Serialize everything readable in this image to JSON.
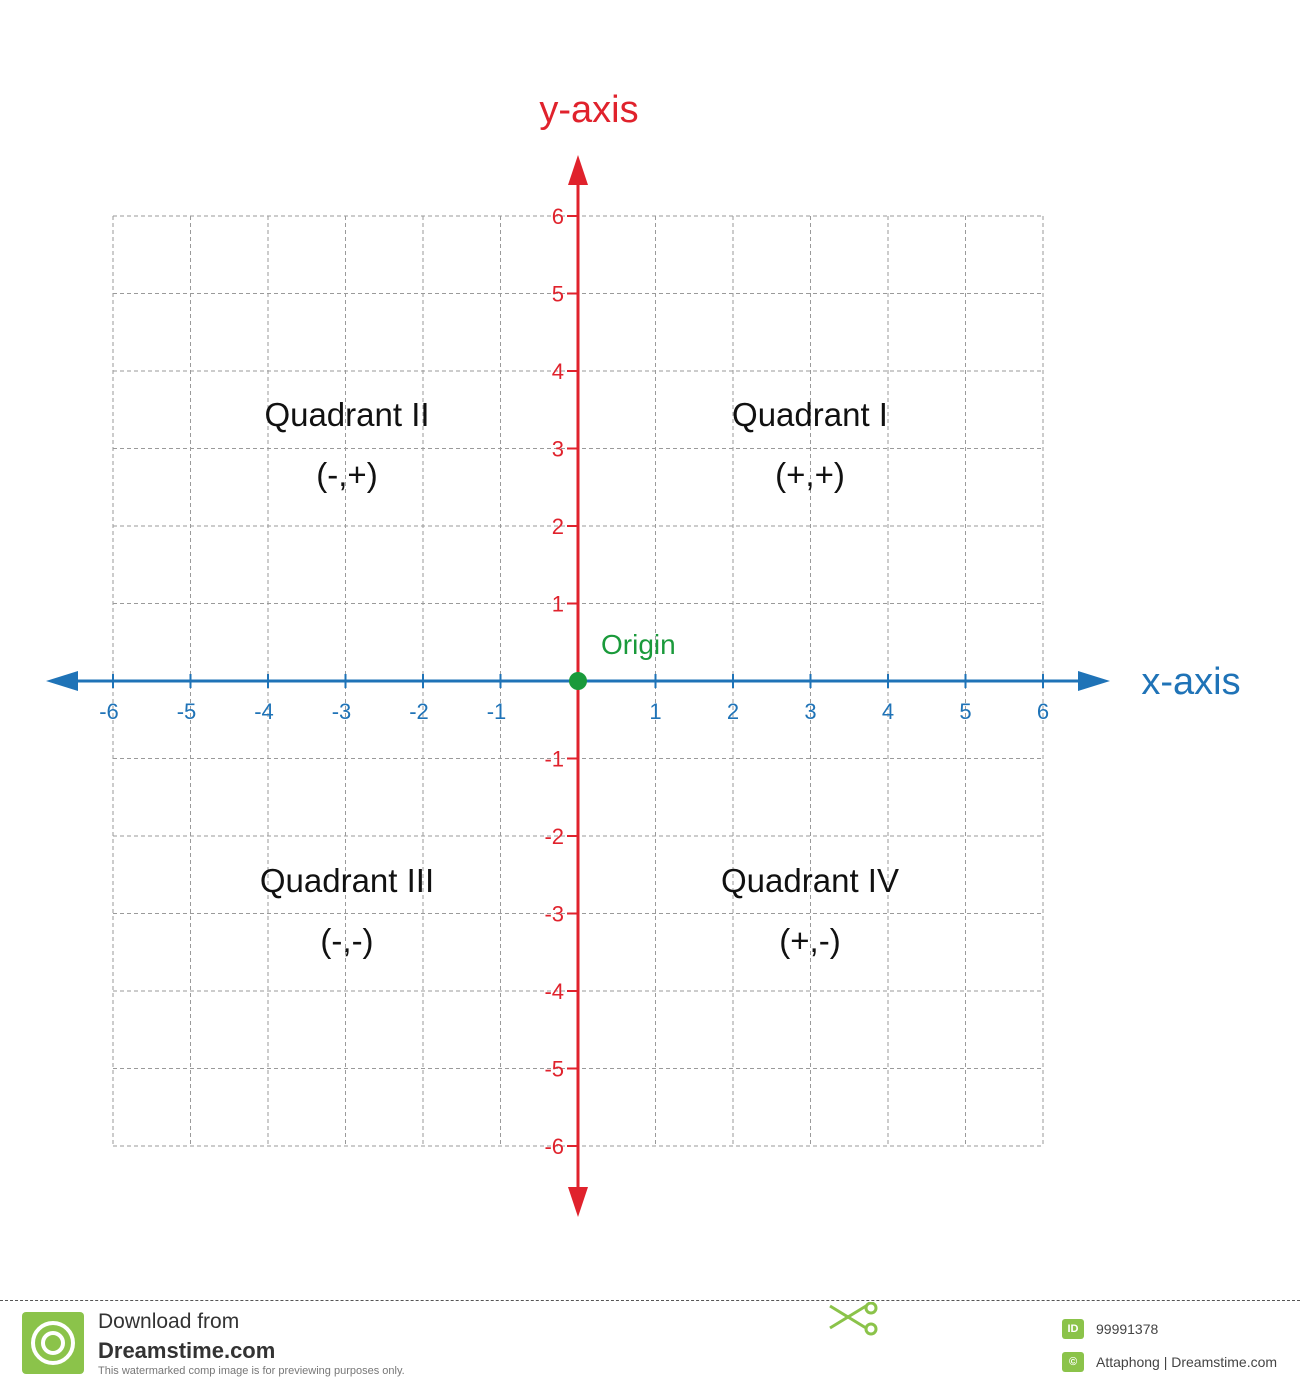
{
  "diagram": {
    "y_axis_title": "y-axis",
    "x_axis_title": "x-axis",
    "origin_label": "Origin",
    "x_range": [
      -6,
      6
    ],
    "y_range": [
      -6,
      6
    ],
    "x_tick_labels": [
      "-6",
      "-5",
      "-4",
      "-3",
      "-2",
      "-1",
      "1",
      "2",
      "3",
      "4",
      "5",
      "6"
    ],
    "y_tick_labels": [
      "6",
      "5",
      "4",
      "3",
      "2",
      "1",
      "-1",
      "-2",
      "-3",
      "-4",
      "-5",
      "-6"
    ],
    "quadrants": {
      "q1": {
        "name": "Quadrant I",
        "signs": "(+,+)"
      },
      "q2": {
        "name": "Quadrant II",
        "signs": "(-,+)"
      },
      "q3": {
        "name": "Quadrant III",
        "signs": "(-,-)"
      },
      "q4": {
        "name": "Quadrant IV",
        "signs": "(+,-)"
      }
    },
    "colors": {
      "x_axis": "#1f73b7",
      "y_axis": "#e0222c",
      "origin": "#1a9a3b",
      "grid": "#9a9a9a",
      "text": "#111111"
    }
  },
  "footer": {
    "download_line1": "Download from",
    "download_line2": "Dreamstime.com",
    "watermark_note": "This watermarked comp image is for previewing purposes only.",
    "id_badge": "ID",
    "image_id": "99991378",
    "credit": "Attaphong | Dreamstime.com",
    "copyright_symbol": "©"
  }
}
